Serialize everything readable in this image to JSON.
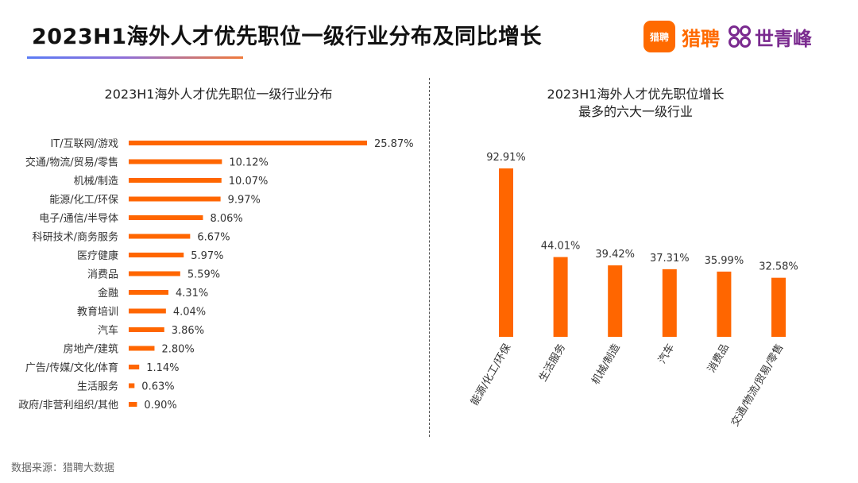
{
  "header": {
    "title": "2023H1海外人才优先职位一级行业分布及同比增长",
    "brand_liepin_badge": "猎聘",
    "brand_liepin": "猎聘",
    "brand_sqf": "世青峰"
  },
  "footer": {
    "source": "数据来源：猎聘大数据"
  },
  "colors": {
    "bar": "#ff6600",
    "accent": "#ff6a00",
    "brand_purple": "#7a2a8f"
  },
  "chart_data": [
    {
      "type": "bar",
      "orientation": "horizontal",
      "title": "2023H1海外人才优先职位一级行业分布",
      "categories": [
        "IT/互联网/游戏",
        "交通/物流/贸易/零售",
        "机械/制造",
        "能源/化工/环保",
        "电子/通信/半导体",
        "科研技术/商务服务",
        "医疗健康",
        "消费品",
        "金融",
        "教育培训",
        "汽车",
        "房地产/建筑",
        "广告/传媒/文化/体育",
        "生活服务",
        "政府/非营利组织/其他"
      ],
      "values": [
        25.87,
        10.12,
        10.07,
        9.97,
        8.06,
        6.67,
        5.97,
        5.59,
        4.31,
        4.04,
        3.86,
        2.8,
        1.14,
        0.63,
        0.9
      ],
      "labels": [
        "25.87%",
        "10.12%",
        "10.07%",
        "9.97%",
        "8.06%",
        "6.67%",
        "5.97%",
        "5.59%",
        "4.31%",
        "4.04%",
        "3.86%",
        "2.80%",
        "1.14%",
        "0.63%",
        "0.90%"
      ],
      "xlim": [
        0,
        25.87
      ]
    },
    {
      "type": "bar",
      "orientation": "vertical",
      "title_lines": [
        "2023H1海外人才优先职位增长",
        "最多的六大一级行业"
      ],
      "categories": [
        "能源/化工/环保",
        "生活服务",
        "机械/制造",
        "汽车",
        "消费品",
        "交通/物流/贸易/零售"
      ],
      "values": [
        92.91,
        44.01,
        39.42,
        37.31,
        35.99,
        32.58
      ],
      "labels": [
        "92.91%",
        "44.01%",
        "39.42%",
        "37.31%",
        "35.99%",
        "32.58%"
      ],
      "ylim": [
        0,
        92.91
      ]
    }
  ]
}
